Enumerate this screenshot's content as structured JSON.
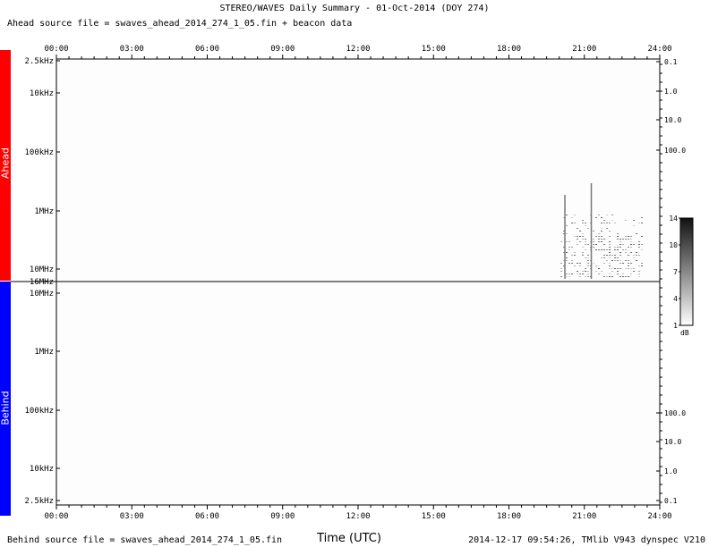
{
  "header": {
    "title": "STEREO/WAVES Daily Summary - 01-Oct-2014 (DOY 274)",
    "ahead_source": "Ahead source file = swaves_ahead_2014_274_1_05.fin + beacon data",
    "behind_source": "Behind source file = swaves_ahead_2014_274_1_05.fin",
    "x_title": "Time (UTC)",
    "stamp": "2014-12-17 09:54:26, TMlib V943 dynspec V210"
  },
  "sidebar": {
    "ahead_label": "Ahead",
    "behind_label": "Behind",
    "ahead_color": "#ff0000",
    "behind_color": "#0000ff"
  },
  "chart_data": [
    {
      "type": "heatmap",
      "name": "Ahead",
      "x_ticks": [
        "00:00",
        "03:00",
        "06:00",
        "09:00",
        "12:00",
        "15:00",
        "18:00",
        "21:00",
        "24:00"
      ],
      "y_left_ticks": [
        "2.5kHz",
        "10kHz",
        "100kHz",
        "1MHz",
        "10MHz",
        "16MHz"
      ],
      "y_right_ticks": [
        "0.1",
        "1.0",
        "10.0",
        "100.0"
      ],
      "burst": {
        "start_hour": 20.05,
        "end_hour": 23.35,
        "low_freq_cutoff": "≈1.5MHz",
        "vertical_streaks_hours": [
          20.2,
          21.25
        ]
      }
    },
    {
      "type": "heatmap",
      "name": "Behind",
      "x_ticks": [
        "00:00",
        "03:00",
        "06:00",
        "09:00",
        "12:00",
        "15:00",
        "18:00",
        "21:00",
        "24:00"
      ],
      "y_left_ticks": [
        "10MHz",
        "1MHz",
        "100kHz",
        "10kHz",
        "2.5kHz"
      ],
      "y_right_ticks": [
        "100.0",
        "10.0",
        "1.0",
        "0.1"
      ]
    }
  ],
  "colorbar": {
    "ticks": [
      "14",
      "10",
      "7",
      "4",
      "1"
    ],
    "unit": "dB"
  }
}
